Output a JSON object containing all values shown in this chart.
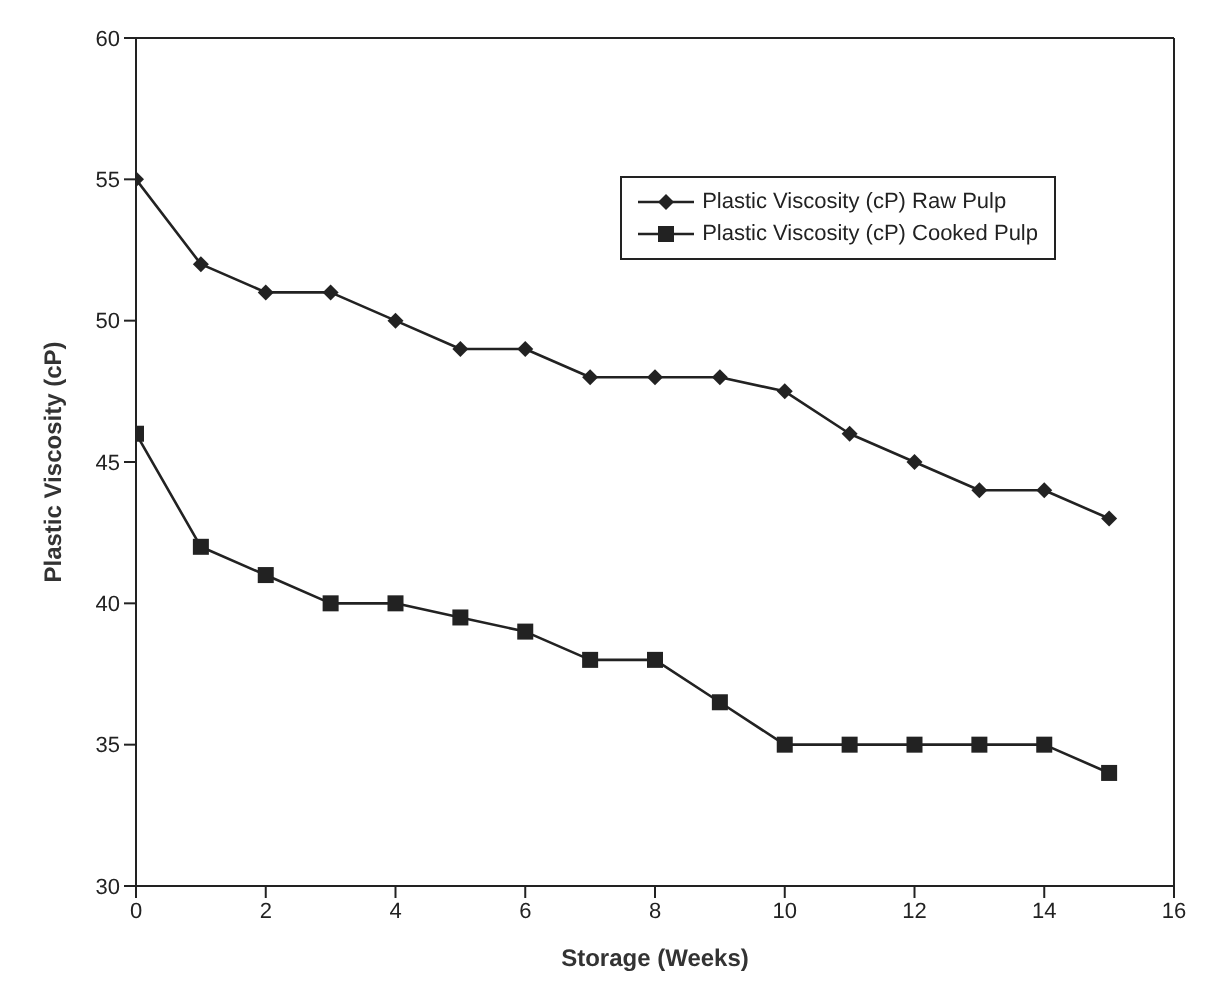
{
  "chart_data": {
    "type": "line",
    "xlabel": "Storage (Weeks)",
    "ylabel": "Plastic Viscosity (cP)",
    "x": [
      0,
      1,
      2,
      3,
      4,
      5,
      6,
      7,
      8,
      9,
      10,
      11,
      12,
      13,
      14,
      15
    ],
    "series": [
      {
        "name": "Plastic Viscosity (cP) Raw Pulp",
        "color": "#222222",
        "marker": "diamond",
        "values": [
          55,
          52,
          51,
          51,
          50,
          49,
          49,
          48,
          48,
          48,
          47.5,
          46,
          45,
          44,
          44,
          43
        ]
      },
      {
        "name": "Plastic Viscosity (cP) Cooked Pulp",
        "color": "#222222",
        "marker": "square",
        "values": [
          46,
          42,
          41,
          40,
          40,
          39.5,
          39,
          38,
          38,
          36.5,
          35,
          35,
          35,
          35,
          35,
          34
        ]
      }
    ],
    "xlim": [
      0,
      16
    ],
    "xticks": [
      0,
      2,
      4,
      6,
      8,
      10,
      12,
      14,
      16
    ],
    "ylim": [
      30,
      60
    ],
    "yticks": [
      30,
      35,
      40,
      45,
      50,
      55,
      60
    ],
    "grid": false,
    "legend": "top right",
    "line_style": "solid"
  }
}
